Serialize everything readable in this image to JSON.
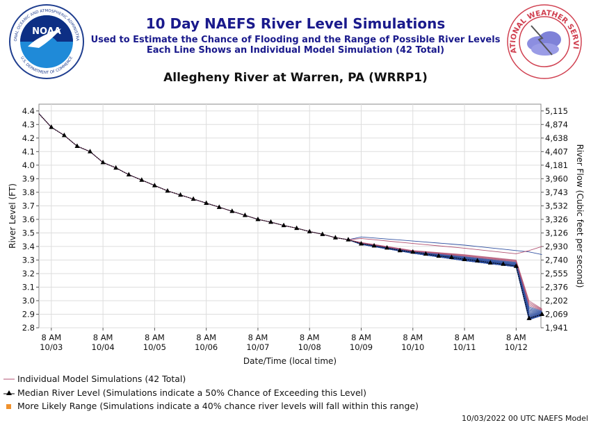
{
  "header": {
    "title": "10 Day NAEFS River Level Simulations",
    "subtitle1": "Used to Estimate the Chance of Flooding and the Range of Possible River Levels",
    "subtitle2": "Each Line Shows an Individual Model Simulation (42 Total)"
  },
  "logos": {
    "noaa_text": "NOAA",
    "noaa_ring": "NATIONAL OCEANIC AND ATMOSPHERIC ADMINISTRATION",
    "noaa_ring_bottom": "U.S. DEPARTMENT OF COMMERCE",
    "nws_ring": "NATIONAL WEATHER SERVICE"
  },
  "chart_data": {
    "type": "line",
    "title": "Allegheny River at Warren, PA (WRRP1)",
    "xlabel": "Date/Time (local time)",
    "ylabel": "River Level (FT)",
    "y2label": "River Flow (Cubic feet per second)",
    "ylim": [
      2.8,
      4.45
    ],
    "yticks": [
      2.8,
      2.9,
      3.0,
      3.1,
      3.2,
      3.3,
      3.4,
      3.5,
      3.6,
      3.7,
      3.8,
      3.9,
      4.0,
      4.1,
      4.2,
      4.3,
      4.4
    ],
    "y2ticks": [
      {
        "level": 2.8,
        "label": "1,941"
      },
      {
        "level": 2.9,
        "label": "2,069"
      },
      {
        "level": 3.0,
        "label": "2,202"
      },
      {
        "level": 3.1,
        "label": "2,376"
      },
      {
        "level": 3.2,
        "label": "2,555"
      },
      {
        "level": 3.3,
        "label": "2,740"
      },
      {
        "level": 3.4,
        "label": "2,930"
      },
      {
        "level": 3.5,
        "label": "3,126"
      },
      {
        "level": 3.6,
        "label": "3,326"
      },
      {
        "level": 3.7,
        "label": "3,532"
      },
      {
        "level": 3.8,
        "label": "3,743"
      },
      {
        "level": 3.9,
        "label": "3,960"
      },
      {
        "level": 4.0,
        "label": "4,181"
      },
      {
        "level": 4.1,
        "label": "4,407"
      },
      {
        "level": 4.2,
        "label": "4,638"
      },
      {
        "level": 4.3,
        "label": "4,874"
      },
      {
        "level": 4.4,
        "label": "5,115"
      }
    ],
    "xlim": [
      -0.24,
      9.48
    ],
    "xticks": [
      {
        "pos": 0,
        "time": "8 AM",
        "date": "10/03"
      },
      {
        "pos": 1,
        "time": "8 AM",
        "date": "10/04"
      },
      {
        "pos": 2,
        "time": "8 AM",
        "date": "10/05"
      },
      {
        "pos": 3,
        "time": "8 AM",
        "date": "10/06"
      },
      {
        "pos": 4,
        "time": "8 AM",
        "date": "10/07"
      },
      {
        "pos": 5,
        "time": "8 AM",
        "date": "10/08"
      },
      {
        "pos": 6,
        "time": "8 AM",
        "date": "10/09"
      },
      {
        "pos": 7,
        "time": "8 AM",
        "date": "10/10"
      },
      {
        "pos": 8,
        "time": "8 AM",
        "date": "10/11"
      },
      {
        "pos": 9,
        "time": "8 AM",
        "date": "10/12"
      }
    ],
    "median": {
      "name": "Median River Level",
      "x": [
        -0.24,
        0.0,
        0.25,
        0.5,
        0.75,
        1.0,
        1.25,
        1.5,
        1.75,
        2.0,
        2.25,
        2.5,
        2.75,
        3.0,
        3.25,
        3.5,
        3.75,
        4.0,
        4.25,
        4.5,
        4.75,
        5.0,
        5.25,
        5.5,
        5.75,
        6.0,
        6.25,
        6.5,
        6.75,
        7.0,
        7.25,
        7.5,
        7.75,
        8.0,
        8.25,
        8.5,
        8.75,
        9.0,
        9.25,
        9.5
      ],
      "y": [
        4.38,
        4.28,
        4.22,
        4.14,
        4.1,
        4.02,
        3.98,
        3.93,
        3.89,
        3.85,
        3.81,
        3.78,
        3.75,
        3.72,
        3.69,
        3.66,
        3.63,
        3.6,
        3.58,
        3.555,
        3.535,
        3.51,
        3.49,
        3.465,
        3.45,
        3.42,
        3.405,
        3.39,
        3.37,
        3.36,
        3.345,
        3.33,
        3.32,
        3.305,
        3.295,
        3.28,
        3.27,
        3.255,
        2.87,
        2.9
      ]
    },
    "ensemble_count": 42,
    "ensemble_spread": {
      "x": [
        6.0,
        7.0,
        8.0,
        9.0,
        9.25,
        9.5
      ],
      "low": [
        3.415,
        3.35,
        3.295,
        3.25,
        2.86,
        2.89
      ],
      "high": [
        3.47,
        3.44,
        3.41,
        3.37,
        3.36,
        3.34
      ],
      "outlier_high_end": 3.4,
      "mid_high": [
        3.43,
        3.37,
        3.34,
        3.3,
        3.0,
        2.94
      ]
    },
    "colors": {
      "member": "#b05070",
      "median_line": "#000000",
      "range": "#f0922e",
      "grid": "#dddddd",
      "member_alt": "#3050a0"
    },
    "legend": {
      "individual": "Individual Model Simulations (42 Total)",
      "median": "Median River Level (Simulations indicate a 50% Chance of Exceeding this Level)",
      "range": "More Likely Range (Simulations indicate a 40% chance river levels will fall within this range)"
    }
  },
  "footer": "10/03/2022 00 UTC NAEFS Model"
}
